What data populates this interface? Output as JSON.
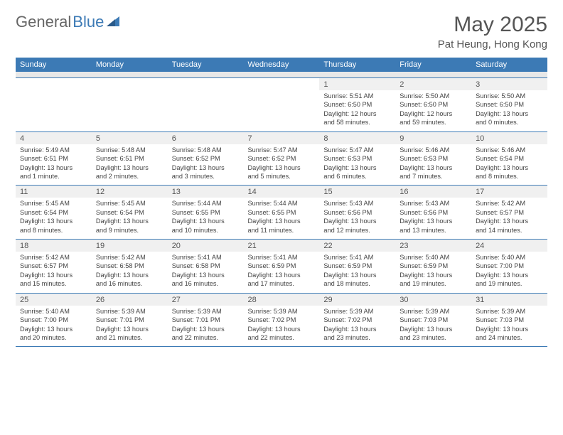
{
  "logo": {
    "general": "General",
    "blue": "Blue"
  },
  "title": "May 2025",
  "location": "Pat Heung, Hong Kong",
  "colors": {
    "header_bg": "#3c7ab5",
    "header_text": "#ffffff",
    "daynum_bg": "#f0f0f0",
    "divider": "#3c7ab5",
    "text": "#444444",
    "title_color": "#555555"
  },
  "day_headers": [
    "Sunday",
    "Monday",
    "Tuesday",
    "Wednesday",
    "Thursday",
    "Friday",
    "Saturday"
  ],
  "weeks": [
    {
      "days": [
        {
          "num": "",
          "lines": [
            "",
            "",
            "",
            ""
          ]
        },
        {
          "num": "",
          "lines": [
            "",
            "",
            "",
            ""
          ]
        },
        {
          "num": "",
          "lines": [
            "",
            "",
            "",
            ""
          ]
        },
        {
          "num": "",
          "lines": [
            "",
            "",
            "",
            ""
          ]
        },
        {
          "num": "1",
          "lines": [
            "Sunrise: 5:51 AM",
            "Sunset: 6:50 PM",
            "Daylight: 12 hours",
            "and 58 minutes."
          ]
        },
        {
          "num": "2",
          "lines": [
            "Sunrise: 5:50 AM",
            "Sunset: 6:50 PM",
            "Daylight: 12 hours",
            "and 59 minutes."
          ]
        },
        {
          "num": "3",
          "lines": [
            "Sunrise: 5:50 AM",
            "Sunset: 6:50 PM",
            "Daylight: 13 hours",
            "and 0 minutes."
          ]
        }
      ]
    },
    {
      "days": [
        {
          "num": "4",
          "lines": [
            "Sunrise: 5:49 AM",
            "Sunset: 6:51 PM",
            "Daylight: 13 hours",
            "and 1 minute."
          ]
        },
        {
          "num": "5",
          "lines": [
            "Sunrise: 5:48 AM",
            "Sunset: 6:51 PM",
            "Daylight: 13 hours",
            "and 2 minutes."
          ]
        },
        {
          "num": "6",
          "lines": [
            "Sunrise: 5:48 AM",
            "Sunset: 6:52 PM",
            "Daylight: 13 hours",
            "and 3 minutes."
          ]
        },
        {
          "num": "7",
          "lines": [
            "Sunrise: 5:47 AM",
            "Sunset: 6:52 PM",
            "Daylight: 13 hours",
            "and 5 minutes."
          ]
        },
        {
          "num": "8",
          "lines": [
            "Sunrise: 5:47 AM",
            "Sunset: 6:53 PM",
            "Daylight: 13 hours",
            "and 6 minutes."
          ]
        },
        {
          "num": "9",
          "lines": [
            "Sunrise: 5:46 AM",
            "Sunset: 6:53 PM",
            "Daylight: 13 hours",
            "and 7 minutes."
          ]
        },
        {
          "num": "10",
          "lines": [
            "Sunrise: 5:46 AM",
            "Sunset: 6:54 PM",
            "Daylight: 13 hours",
            "and 8 minutes."
          ]
        }
      ]
    },
    {
      "days": [
        {
          "num": "11",
          "lines": [
            "Sunrise: 5:45 AM",
            "Sunset: 6:54 PM",
            "Daylight: 13 hours",
            "and 8 minutes."
          ]
        },
        {
          "num": "12",
          "lines": [
            "Sunrise: 5:45 AM",
            "Sunset: 6:54 PM",
            "Daylight: 13 hours",
            "and 9 minutes."
          ]
        },
        {
          "num": "13",
          "lines": [
            "Sunrise: 5:44 AM",
            "Sunset: 6:55 PM",
            "Daylight: 13 hours",
            "and 10 minutes."
          ]
        },
        {
          "num": "14",
          "lines": [
            "Sunrise: 5:44 AM",
            "Sunset: 6:55 PM",
            "Daylight: 13 hours",
            "and 11 minutes."
          ]
        },
        {
          "num": "15",
          "lines": [
            "Sunrise: 5:43 AM",
            "Sunset: 6:56 PM",
            "Daylight: 13 hours",
            "and 12 minutes."
          ]
        },
        {
          "num": "16",
          "lines": [
            "Sunrise: 5:43 AM",
            "Sunset: 6:56 PM",
            "Daylight: 13 hours",
            "and 13 minutes."
          ]
        },
        {
          "num": "17",
          "lines": [
            "Sunrise: 5:42 AM",
            "Sunset: 6:57 PM",
            "Daylight: 13 hours",
            "and 14 minutes."
          ]
        }
      ]
    },
    {
      "days": [
        {
          "num": "18",
          "lines": [
            "Sunrise: 5:42 AM",
            "Sunset: 6:57 PM",
            "Daylight: 13 hours",
            "and 15 minutes."
          ]
        },
        {
          "num": "19",
          "lines": [
            "Sunrise: 5:42 AM",
            "Sunset: 6:58 PM",
            "Daylight: 13 hours",
            "and 16 minutes."
          ]
        },
        {
          "num": "20",
          "lines": [
            "Sunrise: 5:41 AM",
            "Sunset: 6:58 PM",
            "Daylight: 13 hours",
            "and 16 minutes."
          ]
        },
        {
          "num": "21",
          "lines": [
            "Sunrise: 5:41 AM",
            "Sunset: 6:59 PM",
            "Daylight: 13 hours",
            "and 17 minutes."
          ]
        },
        {
          "num": "22",
          "lines": [
            "Sunrise: 5:41 AM",
            "Sunset: 6:59 PM",
            "Daylight: 13 hours",
            "and 18 minutes."
          ]
        },
        {
          "num": "23",
          "lines": [
            "Sunrise: 5:40 AM",
            "Sunset: 6:59 PM",
            "Daylight: 13 hours",
            "and 19 minutes."
          ]
        },
        {
          "num": "24",
          "lines": [
            "Sunrise: 5:40 AM",
            "Sunset: 7:00 PM",
            "Daylight: 13 hours",
            "and 19 minutes."
          ]
        }
      ]
    },
    {
      "days": [
        {
          "num": "25",
          "lines": [
            "Sunrise: 5:40 AM",
            "Sunset: 7:00 PM",
            "Daylight: 13 hours",
            "and 20 minutes."
          ]
        },
        {
          "num": "26",
          "lines": [
            "Sunrise: 5:39 AM",
            "Sunset: 7:01 PM",
            "Daylight: 13 hours",
            "and 21 minutes."
          ]
        },
        {
          "num": "27",
          "lines": [
            "Sunrise: 5:39 AM",
            "Sunset: 7:01 PM",
            "Daylight: 13 hours",
            "and 22 minutes."
          ]
        },
        {
          "num": "28",
          "lines": [
            "Sunrise: 5:39 AM",
            "Sunset: 7:02 PM",
            "Daylight: 13 hours",
            "and 22 minutes."
          ]
        },
        {
          "num": "29",
          "lines": [
            "Sunrise: 5:39 AM",
            "Sunset: 7:02 PM",
            "Daylight: 13 hours",
            "and 23 minutes."
          ]
        },
        {
          "num": "30",
          "lines": [
            "Sunrise: 5:39 AM",
            "Sunset: 7:03 PM",
            "Daylight: 13 hours",
            "and 23 minutes."
          ]
        },
        {
          "num": "31",
          "lines": [
            "Sunrise: 5:39 AM",
            "Sunset: 7:03 PM",
            "Daylight: 13 hours",
            "and 24 minutes."
          ]
        }
      ]
    }
  ]
}
